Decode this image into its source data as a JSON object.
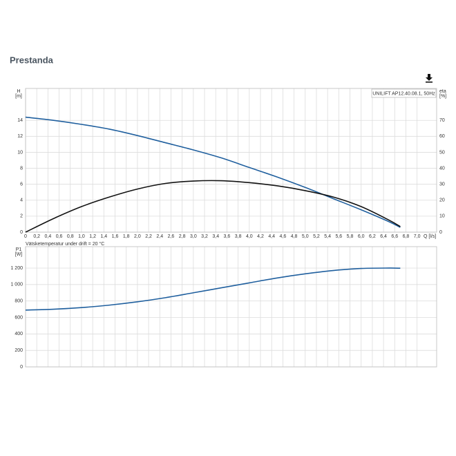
{
  "header": {
    "title": "Prestanda"
  },
  "chart_data": [
    {
      "type": "line",
      "legend_text": "UNILIFT AP12.40.08.1, 50Hz",
      "ylabel": "H",
      "yunit": "[m]",
      "y2label": "eta",
      "y2unit": "[%]",
      "xlabel": "Q [l/s]",
      "x": [
        0,
        0.5,
        1.0,
        1.5,
        2.0,
        2.5,
        3.0,
        3.5,
        4.0,
        4.5,
        5.0,
        5.5,
        6.0,
        6.5,
        6.7
      ],
      "series": [
        {
          "color": "#1f5f9e",
          "values": [
            14.4,
            14.0,
            13.5,
            12.9,
            12.1,
            11.2,
            10.3,
            9.3,
            8.1,
            6.9,
            5.6,
            4.2,
            2.8,
            1.3,
            0.6
          ]
        },
        {
          "color": "#111111",
          "axis": "y2",
          "values": [
            0,
            8.5,
            16,
            22,
            27,
            30.5,
            32,
            32.2,
            31,
            29,
            26,
            22,
            16,
            7.5,
            3.5
          ]
        }
      ],
      "xlim": [
        0,
        7.35
      ],
      "xticks": [
        0,
        {
          "value": 0.2,
          "label": "0,2"
        },
        {
          "value": 0.4,
          "label": "0,4"
        },
        {
          "value": 0.6,
          "label": "0,6"
        },
        {
          "value": 0.8,
          "label": "0,8"
        },
        {
          "value": 1.0,
          "label": "1,0"
        },
        {
          "value": 1.2,
          "label": "1,2"
        },
        {
          "value": 1.4,
          "label": "1,4"
        },
        {
          "value": 1.6,
          "label": "1,6"
        },
        {
          "value": 1.8,
          "label": "1,8"
        },
        {
          "value": 2.0,
          "label": "2,0"
        },
        {
          "value": 2.2,
          "label": "2,2"
        },
        {
          "value": 2.4,
          "label": "2,4"
        },
        {
          "value": 2.6,
          "label": "2,6"
        },
        {
          "value": 2.8,
          "label": "2,8"
        },
        {
          "value": 3.0,
          "label": "3,0"
        },
        {
          "value": 3.2,
          "label": "3,2"
        },
        {
          "value": 3.4,
          "label": "3,4"
        },
        {
          "value": 3.6,
          "label": "3,6"
        },
        {
          "value": 3.8,
          "label": "3,8"
        },
        {
          "value": 4.0,
          "label": "4,0"
        },
        {
          "value": 4.2,
          "label": "4,2"
        },
        {
          "value": 4.4,
          "label": "4,4"
        },
        {
          "value": 4.6,
          "label": "4,6"
        },
        {
          "value": 4.8,
          "label": "4,8"
        },
        {
          "value": 5.0,
          "label": "5,0"
        },
        {
          "value": 5.2,
          "label": "5,2"
        },
        {
          "value": 5.4,
          "label": "5,4"
        },
        {
          "value": 5.6,
          "label": "5,6"
        },
        {
          "value": 5.8,
          "label": "5,8"
        },
        {
          "value": 6.0,
          "label": "6,0"
        },
        {
          "value": 6.2,
          "label": "6,2"
        },
        {
          "value": 6.4,
          "label": "6,4"
        },
        {
          "value": 6.6,
          "label": "6,6"
        },
        {
          "value": 6.8,
          "label": "6,8"
        },
        {
          "value": 7.0,
          "label": "7,0"
        }
      ],
      "ylim": [
        0,
        18
      ],
      "yticks": [
        0,
        2,
        4,
        6,
        8,
        10,
        12,
        14
      ],
      "y2lim": [
        0,
        90
      ],
      "y2ticks": [
        0,
        10,
        20,
        30,
        40,
        50,
        60,
        70
      ],
      "grid": true
    },
    {
      "type": "line",
      "annotation": "Vätsketemperatur under drift = 20 °C",
      "ylabel": "P1",
      "yunit": "[W]",
      "x": [
        0,
        0.5,
        1.0,
        1.5,
        2.0,
        2.5,
        3.0,
        3.5,
        4.0,
        4.5,
        5.0,
        5.5,
        6.0,
        6.5,
        6.7
      ],
      "series": [
        {
          "color": "#1f5f9e",
          "values": [
            690,
            700,
            720,
            750,
            790,
            840,
            900,
            960,
            1020,
            1080,
            1130,
            1170,
            1195,
            1200,
            1198
          ]
        }
      ],
      "xlim": [
        0,
        7.35
      ],
      "ylim": [
        0,
        1460
      ],
      "yticks": [
        0,
        200,
        400,
        600,
        800,
        {
          "value": 1000,
          "label": "1 000"
        },
        {
          "value": 1200,
          "label": "1 200"
        }
      ],
      "grid": true
    }
  ]
}
